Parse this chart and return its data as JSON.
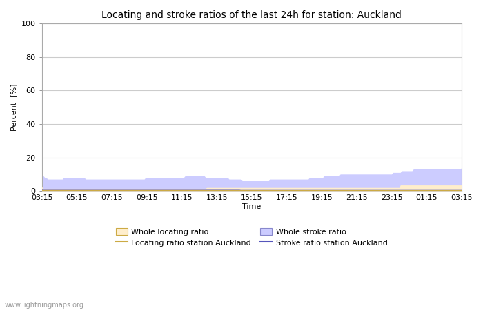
{
  "title": "Locating and stroke ratios of the last 24h for station: Auckland",
  "ylabel": "Percent  [%]",
  "xlabel": "Time",
  "watermark": "www.lightningmaps.org",
  "ylim": [
    0,
    100
  ],
  "yticks": [
    0,
    20,
    40,
    60,
    80,
    100
  ],
  "xtick_labels": [
    "03:15",
    "05:15",
    "07:15",
    "09:15",
    "11:15",
    "13:15",
    "15:15",
    "17:15",
    "19:15",
    "21:15",
    "23:15",
    "01:15",
    "03:15"
  ],
  "bg_color": "#ffffff",
  "plot_bg_color": "#ffffff",
  "grid_color": "#cccccc",
  "stroke_fill_color": "#ccccff",
  "locating_fill_color": "#ffeecc",
  "stroke_line_color": "#5555bb",
  "locating_line_color": "#ccaa44",
  "whole_stroke_data": [
    12,
    9,
    8,
    8,
    7,
    7,
    7,
    7,
    7,
    7,
    7,
    7,
    7,
    7,
    7,
    8,
    8,
    8,
    8,
    8,
    8,
    8,
    8,
    8,
    8,
    8,
    8,
    8,
    8,
    8,
    7,
    7,
    7,
    7,
    7,
    7,
    7,
    7,
    7,
    7,
    7,
    7,
    7,
    7,
    7,
    7,
    7,
    7,
    7,
    7,
    7,
    7,
    7,
    7,
    7,
    7,
    7,
    7,
    7,
    7,
    7,
    7,
    7,
    7,
    7,
    7,
    7,
    7,
    7,
    7,
    7,
    8,
    8,
    8,
    8,
    8,
    8,
    8,
    8,
    8,
    8,
    8,
    8,
    8,
    8,
    8,
    8,
    8,
    8,
    8,
    8,
    8,
    8,
    8,
    8,
    8,
    8,
    8,
    9,
    9,
    9,
    9,
    9,
    9,
    9,
    9,
    9,
    9,
    9,
    9,
    9,
    9,
    8,
    8,
    8,
    8,
    8,
    8,
    8,
    8,
    8,
    8,
    8,
    8,
    8,
    8,
    8,
    8,
    7,
    7,
    7,
    7,
    7,
    7,
    7,
    7,
    7,
    6,
    6,
    6,
    6,
    6,
    6,
    6,
    6,
    6,
    6,
    6,
    6,
    6,
    6,
    6,
    6,
    6,
    6,
    6,
    7,
    7,
    7,
    7,
    7,
    7,
    7,
    7,
    7,
    7,
    7,
    7,
    7,
    7,
    7,
    7,
    7,
    7,
    7,
    7,
    7,
    7,
    7,
    7,
    7,
    7,
    7,
    8,
    8,
    8,
    8,
    8,
    8,
    8,
    8,
    8,
    8,
    9,
    9,
    9,
    9,
    9,
    9,
    9,
    9,
    9,
    9,
    9,
    10,
    10,
    10,
    10,
    10,
    10,
    10,
    10,
    10,
    10,
    10,
    10,
    10,
    10,
    10,
    10,
    10,
    10,
    10,
    10,
    10,
    10,
    10,
    10,
    10,
    10,
    10,
    10,
    10,
    10,
    10,
    10,
    10,
    10,
    10,
    10,
    11,
    11,
    11,
    11,
    11,
    11,
    12,
    12,
    12,
    12,
    12,
    12,
    12,
    12,
    13,
    13,
    13,
    13,
    13,
    13,
    13,
    13,
    13,
    13,
    13,
    13,
    13,
    13,
    13,
    13,
    13,
    13,
    13,
    13,
    13,
    13,
    13,
    13,
    13,
    13,
    13,
    13,
    13,
    13,
    13,
    13,
    13,
    14
  ],
  "whole_locating_data": [
    2.5,
    1.5,
    1.5,
    1.5,
    1.5,
    1.5,
    1.5,
    1.5,
    1.5,
    1.5,
    1.5,
    1.5,
    1.5,
    1.5,
    1.5,
    1.5,
    1.5,
    1.5,
    1.5,
    1.5,
    1.5,
    1.5,
    1.5,
    1.5,
    1.5,
    1.5,
    1.5,
    1.5,
    1.5,
    1.5,
    1.5,
    1.5,
    1.5,
    1.5,
    1.5,
    1.5,
    1.5,
    1.5,
    1.5,
    1.5,
    1.5,
    1.5,
    1.5,
    1.5,
    1.5,
    1.5,
    1.5,
    1.5,
    1.5,
    1.5,
    1.5,
    1.5,
    1.5,
    1.5,
    1.5,
    1.5,
    1.5,
    1.5,
    1.5,
    1.5,
    1.5,
    1.5,
    1.5,
    1.5,
    1.5,
    1.5,
    1.5,
    1.5,
    1.5,
    1.5,
    1.5,
    1.5,
    1.5,
    1.5,
    1.5,
    1.5,
    1.5,
    1.5,
    1.5,
    1.5,
    1.5,
    1.5,
    1.5,
    1.5,
    1.5,
    1.5,
    1.5,
    1.5,
    1.5,
    1.5,
    1.5,
    1.5,
    1.5,
    1.5,
    1.5,
    1.5,
    1.5,
    1.5,
    1.5,
    1.5,
    1.5,
    1.5,
    1.5,
    1.5,
    1.5,
    1.5,
    1.5,
    1.5,
    1.5,
    1.5,
    1.5,
    1.5,
    1.5,
    1.5,
    1.5,
    1.5,
    1.5,
    1.5,
    1.5,
    1.5,
    1.5,
    2,
    2,
    2,
    2,
    2,
    2,
    2,
    2,
    2,
    2,
    2,
    2,
    2,
    2,
    2,
    2,
    2,
    2,
    2,
    2,
    2,
    2,
    2,
    2,
    2,
    2,
    2,
    2,
    2,
    2,
    2,
    2,
    2,
    2,
    2,
    2,
    2,
    2,
    2,
    2,
    2,
    2,
    2,
    2,
    2,
    2,
    2,
    2,
    2,
    2,
    2,
    2,
    2,
    2,
    2,
    2,
    2,
    2,
    2,
    2,
    2,
    2,
    2,
    2,
    2,
    2,
    2,
    2,
    2,
    2,
    2,
    2,
    2,
    2,
    2,
    2,
    2,
    2,
    2,
    2,
    2,
    2,
    2,
    2,
    2,
    2,
    2,
    2,
    2,
    2,
    2,
    2,
    2,
    2,
    2,
    2,
    2,
    2,
    2,
    2,
    2,
    2,
    2,
    2,
    2,
    2,
    2,
    2,
    2,
    2,
    2,
    2,
    2,
    2,
    2,
    2,
    2,
    2,
    2,
    2,
    2,
    2,
    2,
    2,
    2,
    2,
    2,
    2,
    2,
    2,
    2,
    2,
    2,
    2,
    2,
    2,
    2,
    2,
    2,
    2,
    2,
    2,
    3.5,
    3.5,
    3.5,
    3.5,
    3.5,
    3.5,
    3.5,
    3.5,
    3.5,
    3.5,
    3.5,
    3.5,
    3.5,
    3.5,
    3.5,
    3.5,
    3.5,
    3.5,
    3.5,
    3.5,
    3.5,
    3.5,
    3.5,
    3.5,
    3.5,
    3.5,
    3.5,
    3.5,
    3.5,
    3.5,
    3.5,
    3.5,
    3.5,
    3.5,
    3.5,
    3.5,
    3.5,
    3.5,
    3.5,
    3.5,
    3.5,
    3.5,
    3.5,
    3.5,
    3.5,
    3.5
  ],
  "station_stroke_data": [
    0.5,
    0.4,
    0.4,
    0.4,
    0.4,
    0.4,
    0.4,
    0.4,
    0.4,
    0.4,
    0.4,
    0.4,
    0.4,
    0.4,
    0.4,
    0.4,
    0.4,
    0.4,
    0.4,
    0.4,
    0.4,
    0.4,
    0.4,
    0.4,
    0.4,
    0.4,
    0.4,
    0.4,
    0.4,
    0.4,
    0.4,
    0.4,
    0.4,
    0.4,
    0.4,
    0.4,
    0.4,
    0.4,
    0.4,
    0.4,
    0.4,
    0.4,
    0.4,
    0.4,
    0.4,
    0.4,
    0.4,
    0.4,
    0.4,
    0.4,
    0.4,
    0.4,
    0.4,
    0.4,
    0.4,
    0.4,
    0.4,
    0.4,
    0.4,
    0.4,
    0.4,
    0.4,
    0.4,
    0.4,
    0.4,
    0.4,
    0.4,
    0.4,
    0.4,
    0.4,
    0.4,
    0.4,
    0.4,
    0.4,
    0.4,
    0.4,
    0.4,
    0.4,
    0.4,
    0.4,
    0.4,
    0.4,
    0.4,
    0.4,
    0.4,
    0.4,
    0.4,
    0.4,
    0.4,
    0.4,
    0.4,
    0.4,
    0.4,
    0.4,
    0.4,
    0.4,
    0.4,
    0.4,
    0.4,
    0.4,
    0.4,
    0.4,
    0.4,
    0.4,
    0.4,
    0.4,
    0.4,
    0.4,
    0.4,
    0.4,
    0.4,
    0.4,
    0.4,
    0.4,
    0.4,
    0.4,
    0.4,
    0.4,
    0.4,
    0.4,
    0.4,
    0.4,
    0.4,
    0.4,
    0.4,
    0.4,
    0.4,
    0.4,
    0.4,
    0.4,
    0.4,
    0.4,
    0.4,
    0.4,
    0.4,
    0.4,
    0.4,
    0.3,
    0.3,
    0.3,
    0.3,
    0.3,
    0.3,
    0.3,
    0.3,
    0.3,
    0.3,
    0.3,
    0.3,
    0.3,
    0.3,
    0.3,
    0.3,
    0.3,
    0.3,
    0.3,
    0.3,
    0.3,
    0.3,
    0.3,
    0.3,
    0.3,
    0.3,
    0.3,
    0.3,
    0.3,
    0.3,
    0.3,
    0.3,
    0.3,
    0.3,
    0.3,
    0.3,
    0.3,
    0.3,
    0.3,
    0.3,
    0.3,
    0.3,
    0.3,
    0.3,
    0.3,
    0.3,
    0.3,
    0.3,
    0.3,
    0.3,
    0.3,
    0.3,
    0.3,
    0.3,
    0.3,
    0.3,
    0.3,
    0.3,
    0.3,
    0.3,
    0.3,
    0.3,
    0.3,
    0.3,
    0.3,
    0.3,
    0.3,
    0.3,
    0.3,
    0.3,
    0.3,
    0.3,
    0.3,
    0.3,
    0.3,
    0.3,
    0.3,
    0.3,
    0.3,
    0.3,
    0.3,
    0.3,
    0.3,
    0.3,
    0.3,
    0.3,
    0.3,
    0.3,
    0.3,
    0.3,
    0.3,
    0.3,
    0.3,
    0.3,
    0.3,
    0.3,
    0.3,
    0.3,
    0.3,
    0.3,
    0.3,
    0.3,
    0.3,
    0.3,
    0.3,
    0.3,
    0.3,
    0.3,
    0.3,
    0.3,
    0.3,
    0.3,
    0.3,
    0.3,
    0.3,
    0.3,
    0.3,
    0.3,
    0.3,
    0.3,
    0.3,
    0.3,
    0.3,
    0.3,
    0.3,
    0.3,
    0.3,
    0.3,
    0.3,
    0.3,
    0.3,
    0.3,
    0.3,
    0.3,
    0.3,
    0.3,
    0.3,
    0.3,
    0.3,
    0.3,
    0.3,
    0.3,
    0.3,
    0.3,
    0.3,
    0.3,
    0.3,
    0.3,
    0.3,
    0.3,
    0.3,
    0.3,
    0.3
  ],
  "station_locating_data": [
    0.3,
    0.2,
    0.2,
    0.2,
    0.2,
    0.2,
    0.2,
    0.2,
    0.2,
    0.2,
    0.2,
    0.2,
    0.2,
    0.2,
    0.2,
    0.2,
    0.2,
    0.2,
    0.2,
    0.2,
    0.2,
    0.2,
    0.2,
    0.2,
    0.2,
    0.2,
    0.2,
    0.2,
    0.2,
    0.2,
    0.2,
    0.2,
    0.2,
    0.2,
    0.2,
    0.2,
    0.2,
    0.2,
    0.2,
    0.2,
    0.2,
    0.2,
    0.2,
    0.2,
    0.2,
    0.2,
    0.2,
    0.2,
    0.2,
    0.2,
    0.2,
    0.2,
    0.2,
    0.2,
    0.2,
    0.2,
    0.2,
    0.2,
    0.2,
    0.2,
    0.2,
    0.2,
    0.2,
    0.2,
    0.2,
    0.2,
    0.2,
    0.2,
    0.2,
    0.2,
    0.2,
    0.2,
    0.2,
    0.2,
    0.2,
    0.2,
    0.2,
    0.2,
    0.2,
    0.2,
    0.2,
    0.2,
    0.2,
    0.2,
    0.2,
    0.2,
    0.2,
    0.2,
    0.2,
    0.2,
    0.2,
    0.2,
    0.2,
    0.2,
    0.2,
    0.2,
    0.2,
    0.2,
    0.2,
    0.2,
    0.2,
    0.2,
    0.2,
    0.2,
    0.2,
    0.2,
    0.2,
    0.2,
    0.2,
    0.2,
    0.2,
    0.2,
    0.2,
    0.2,
    0.2,
    0.2,
    0.2,
    0.2,
    0.2,
    0.2,
    0.2,
    0.2,
    0.2,
    0.2,
    0.2,
    0.2,
    0.2,
    0.2,
    0.2,
    0.2,
    0.2,
    0.2,
    0.2,
    0.2,
    0.2,
    0.2,
    0.2,
    0.2,
    0.2,
    0.2,
    0.2,
    0.2,
    0.2,
    0.2,
    0.2,
    0.2,
    0.2,
    0.2,
    0.2,
    0.2,
    0.2,
    0.2,
    0.2,
    0.2,
    0.2,
    0.2,
    0.2,
    0.2,
    0.2,
    0.2,
    0.2,
    0.2,
    0.2,
    0.2,
    0.2,
    0.2,
    0.2,
    0.2,
    0.2,
    0.2,
    0.2,
    0.2,
    0.2,
    0.2,
    0.2,
    0.2,
    0.2,
    0.2,
    0.2,
    0.2,
    0.2,
    0.2,
    0.2,
    0.2,
    0.2,
    0.2,
    0.2,
    0.2,
    0.2,
    0.2,
    0.2,
    0.2,
    0.2,
    0.2,
    0.2,
    0.2,
    0.2,
    0.2,
    0.2,
    0.2,
    0.2,
    0.2,
    0.2,
    0.2,
    0.2,
    0.2,
    0.2,
    0.2,
    0.2,
    0.2,
    0.2,
    0.2,
    0.2,
    0.2,
    0.2,
    0.2,
    0.2,
    0.2,
    0.2,
    0.2,
    0.2,
    0.2,
    0.2,
    0.2,
    0.2,
    0.2,
    0.2,
    0.2,
    0.2,
    0.2,
    0.2,
    0.2,
    0.2,
    0.2,
    0.2,
    0.2,
    0.2,
    0.2,
    0.2,
    0.2,
    0.2,
    0.2,
    0.2,
    0.2,
    0.2,
    0.2,
    0.2,
    0.2,
    0.2,
    0.2,
    0.2,
    0.2,
    0.2,
    0.2,
    0.2,
    0.2,
    0.2,
    0.2,
    0.2,
    0.2,
    0.2,
    0.2,
    0.2,
    0.2,
    0.2,
    0.2,
    0.2,
    0.2,
    0.2,
    0.2,
    0.2,
    0.2,
    0.2,
    0.2,
    0.2,
    0.2,
    0.2,
    0.2,
    0.2,
    0.2,
    0.2,
    0.2,
    0.2,
    0.2,
    0.2,
    0.2,
    0.2,
    0.2,
    0.2,
    0.2
  ]
}
